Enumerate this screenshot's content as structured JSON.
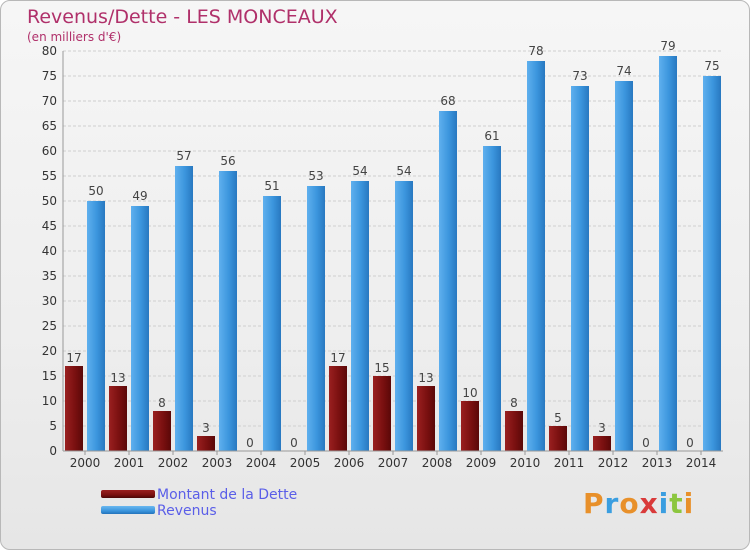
{
  "title": "Revenus/Dette - LES MONCEAUX",
  "subtitle": "(en milliers d'€)",
  "logo": {
    "text": "Proxiti",
    "colors": [
      "#e8902a",
      "#3a9ee0",
      "#e8902a",
      "#d93a3a",
      "#3a9ee0",
      "#8cc63f",
      "#e8902a"
    ]
  },
  "colors": {
    "dette": "#7a1010",
    "revenus": "#3b95dd",
    "grid": "#cfcfcf",
    "axis_text": "#333333",
    "value_text": "#444444"
  },
  "chart_data": {
    "type": "bar",
    "categories": [
      "2000",
      "2001",
      "2002",
      "2003",
      "2004",
      "2005",
      "2006",
      "2007",
      "2008",
      "2009",
      "2010",
      "2011",
      "2012",
      "2013",
      "2014"
    ],
    "series": [
      {
        "name": "Montant de la Dette",
        "values": [
          17,
          13,
          8,
          3,
          0,
          0,
          17,
          15,
          13,
          10,
          8,
          5,
          3,
          0,
          0
        ]
      },
      {
        "name": "Revenus",
        "values": [
          50,
          49,
          57,
          56,
          51,
          53,
          54,
          54,
          68,
          61,
          78,
          73,
          74,
          79,
          75
        ]
      }
    ],
    "ylim": [
      0,
      80
    ],
    "yticks": [
      0,
      5,
      10,
      15,
      20,
      25,
      30,
      35,
      40,
      45,
      50,
      55,
      60,
      65,
      70,
      75,
      80
    ],
    "grid": true,
    "legend_position": "bottom-left"
  }
}
